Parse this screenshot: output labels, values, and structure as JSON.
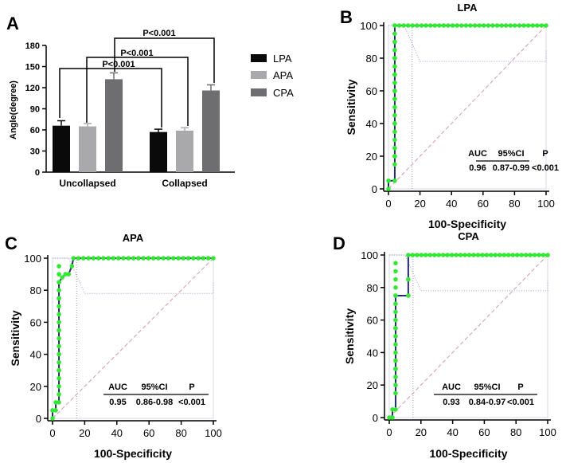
{
  "figure": {
    "panel_labels": [
      "A",
      "B",
      "C",
      "D"
    ]
  },
  "chart_data": [
    {
      "panel": "A",
      "type": "bar",
      "title": "",
      "xlabel": "",
      "ylabel": "Angle(degree)",
      "ylim": [
        0,
        180
      ],
      "yticks": [
        0,
        30,
        60,
        90,
        120,
        150,
        180
      ],
      "categories": [
        "Uncollapsed",
        "Collapsed"
      ],
      "series": [
        {
          "name": "LPA",
          "color": "#0a0a0a",
          "values": [
            66,
            57
          ],
          "errors": [
            7,
            4
          ]
        },
        {
          "name": "APA",
          "color": "#a9a9ab",
          "values": [
            65,
            59
          ],
          "errors": [
            4,
            4
          ]
        },
        {
          "name": "CPA",
          "color": "#6e6e70",
          "values": [
            132,
            116
          ],
          "errors": [
            9,
            8
          ]
        }
      ],
      "annotations": [
        "P<0.001",
        "P<0.001",
        "P<0.001"
      ]
    },
    {
      "panel": "B",
      "type": "line",
      "title": "LPA",
      "xlabel": "100-Specificity",
      "ylabel": "Sensitivity",
      "xlim": [
        0,
        100
      ],
      "ylim": [
        0,
        100
      ],
      "ticks": [
        0,
        20,
        40,
        60,
        80,
        100
      ],
      "roc": {
        "x": [
          0,
          0,
          4,
          4,
          4,
          4,
          4,
          4,
          4,
          4,
          4,
          100
        ],
        "y": [
          0,
          5,
          5,
          20,
          40,
          60,
          70,
          80,
          90,
          100,
          100,
          100
        ]
      },
      "marker_count": 45,
      "stats": {
        "headers": [
          "AUC",
          "95%CI",
          "P"
        ],
        "values": [
          "0.96",
          "0.87-0.99",
          "<0.001"
        ]
      }
    },
    {
      "panel": "C",
      "type": "line",
      "title": "APA",
      "xlabel": "100-Specificity",
      "ylabel": "Sensitivity",
      "xlim": [
        0,
        100
      ],
      "ylim": [
        0,
        100
      ],
      "ticks": [
        0,
        20,
        40,
        60,
        80,
        100
      ],
      "roc": {
        "x": [
          0,
          0,
          2,
          2,
          4,
          4,
          4,
          4,
          4,
          6,
          8,
          10,
          12,
          13,
          100
        ],
        "y": [
          0,
          5,
          5,
          10,
          10,
          30,
          55,
          75,
          85,
          88,
          90,
          90,
          95,
          100,
          100
        ]
      },
      "marker_count": 42,
      "stats": {
        "headers": [
          "AUC",
          "95%CI",
          "P"
        ],
        "values": [
          "0.95",
          "0.86-0.98",
          "<0.001"
        ]
      }
    },
    {
      "panel": "D",
      "type": "line",
      "title": "CPA",
      "xlabel": "100-Specificity",
      "ylabel": "Sensitivity",
      "xlim": [
        0,
        100
      ],
      "ylim": [
        0,
        100
      ],
      "ticks": [
        0,
        20,
        40,
        60,
        80,
        100
      ],
      "roc": {
        "x": [
          0,
          2,
          2,
          4,
          4,
          4,
          4,
          12,
          12,
          12,
          100
        ],
        "y": [
          0,
          0,
          5,
          5,
          30,
          55,
          75,
          75,
          85,
          100,
          100
        ]
      },
      "marker_count": 42,
      "stats": {
        "headers": [
          "AUC",
          "95%CI",
          "P"
        ],
        "values": [
          "0.93",
          "0.84-0.97",
          "<0.001"
        ]
      }
    }
  ]
}
